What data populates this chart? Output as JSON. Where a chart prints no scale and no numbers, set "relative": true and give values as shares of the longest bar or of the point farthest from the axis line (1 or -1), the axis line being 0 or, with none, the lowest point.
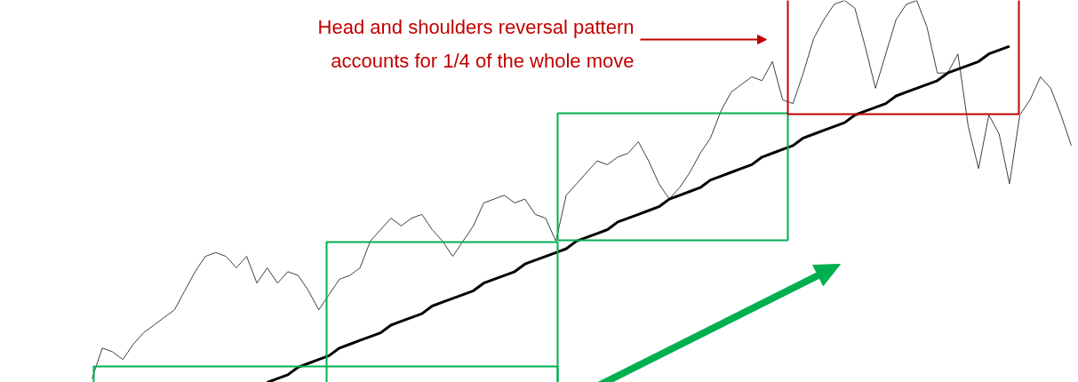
{
  "chart_data": {
    "type": "line",
    "relative": true,
    "categories": [
      null,
      null,
      null,
      null,
      null,
      null,
      null,
      null,
      null,
      null,
      null,
      null,
      null,
      null,
      null,
      null,
      null,
      null,
      null,
      null,
      null,
      null,
      null,
      null,
      null,
      null,
      null,
      null,
      null,
      null,
      null,
      null,
      null,
      null,
      null,
      null,
      null,
      null,
      null,
      null,
      null,
      null,
      null,
      null,
      null,
      null,
      null,
      null,
      null,
      null,
      null,
      null,
      null,
      null,
      null,
      null,
      null,
      null,
      null,
      null,
      null,
      null,
      null,
      null,
      null,
      null,
      null,
      null,
      null,
      null,
      null,
      null,
      null,
      null,
      null,
      null,
      null,
      null,
      null,
      null,
      null,
      null,
      null,
      null,
      null,
      null,
      null,
      null,
      null,
      null,
      null,
      null,
      null,
      null,
      null,
      null
    ],
    "series": [
      {
        "color": "#404040",
        "values": [
          0.01,
          0.09,
          0.08,
          0.06,
          0.1,
          0.13,
          0.15,
          0.17,
          0.19,
          0.24,
          0.29,
          0.33,
          0.34,
          0.33,
          0.3,
          0.33,
          0.26,
          0.3,
          0.26,
          0.29,
          0.28,
          0.24,
          0.19,
          0.23,
          0.27,
          0.28,
          0.3,
          0.37,
          0.4,
          0.43,
          0.41,
          0.43,
          0.44,
          0.4,
          0.37,
          0.33,
          0.37,
          0.41,
          0.47,
          0.48,
          0.49,
          0.47,
          0.48,
          0.44,
          0.43,
          0.37,
          0.49,
          0.52,
          0.55,
          0.58,
          0.57,
          0.59,
          0.6,
          0.63,
          0.58,
          0.52,
          0.48,
          0.51,
          0.55,
          0.6,
          0.64,
          0.71,
          0.76,
          0.78,
          0.8,
          0.79,
          0.84,
          0.74,
          0.73,
          0.81,
          0.9,
          0.95,
          0.99,
          1.0,
          0.98,
          0.88,
          0.77,
          0.86,
          0.95,
          0.99,
          1.0,
          0.93,
          0.81,
          0.81,
          0.86,
          0.67,
          0.56,
          0.7,
          0.65,
          0.52,
          0.7,
          0.74,
          0.8,
          0.77,
          0.7,
          0.62
        ]
      },
      {
        "color": "#000000",
        "values": [
          null,
          null,
          null,
          null,
          null,
          null,
          null,
          null,
          null,
          null,
          null,
          null,
          null,
          null,
          null,
          null,
          null,
          0,
          0.01,
          0.02,
          0.04,
          0.05,
          0.06,
          0.07,
          0.09,
          0.1,
          0.11,
          0.12,
          0.13,
          0.15,
          0.16,
          0.17,
          0.18,
          0.2,
          0.21,
          0.22,
          0.23,
          0.24,
          0.26,
          0.27,
          0.28,
          0.29,
          0.31,
          0.32,
          0.33,
          0.34,
          0.35,
          0.37,
          0.38,
          0.39,
          0.4,
          0.42,
          0.43,
          0.44,
          0.45,
          0.46,
          0.48,
          0.49,
          0.5,
          0.51,
          0.53,
          0.54,
          0.55,
          0.56,
          0.57,
          0.59,
          0.6,
          0.61,
          0.62,
          0.64,
          0.65,
          0.66,
          0.67,
          0.68,
          0.7,
          0.71,
          0.72,
          0.73,
          0.75,
          0.76,
          0.77,
          0.78,
          0.79,
          0.81,
          0.82,
          0.83,
          0.84,
          0.86,
          0.87,
          0.88,
          null,
          null,
          null,
          null,
          null,
          null
        ]
      }
    ],
    "annotations": [
      "Head and shoulders reversal pattern\naccounts for 1/4 of the whole move"
    ]
  }
}
